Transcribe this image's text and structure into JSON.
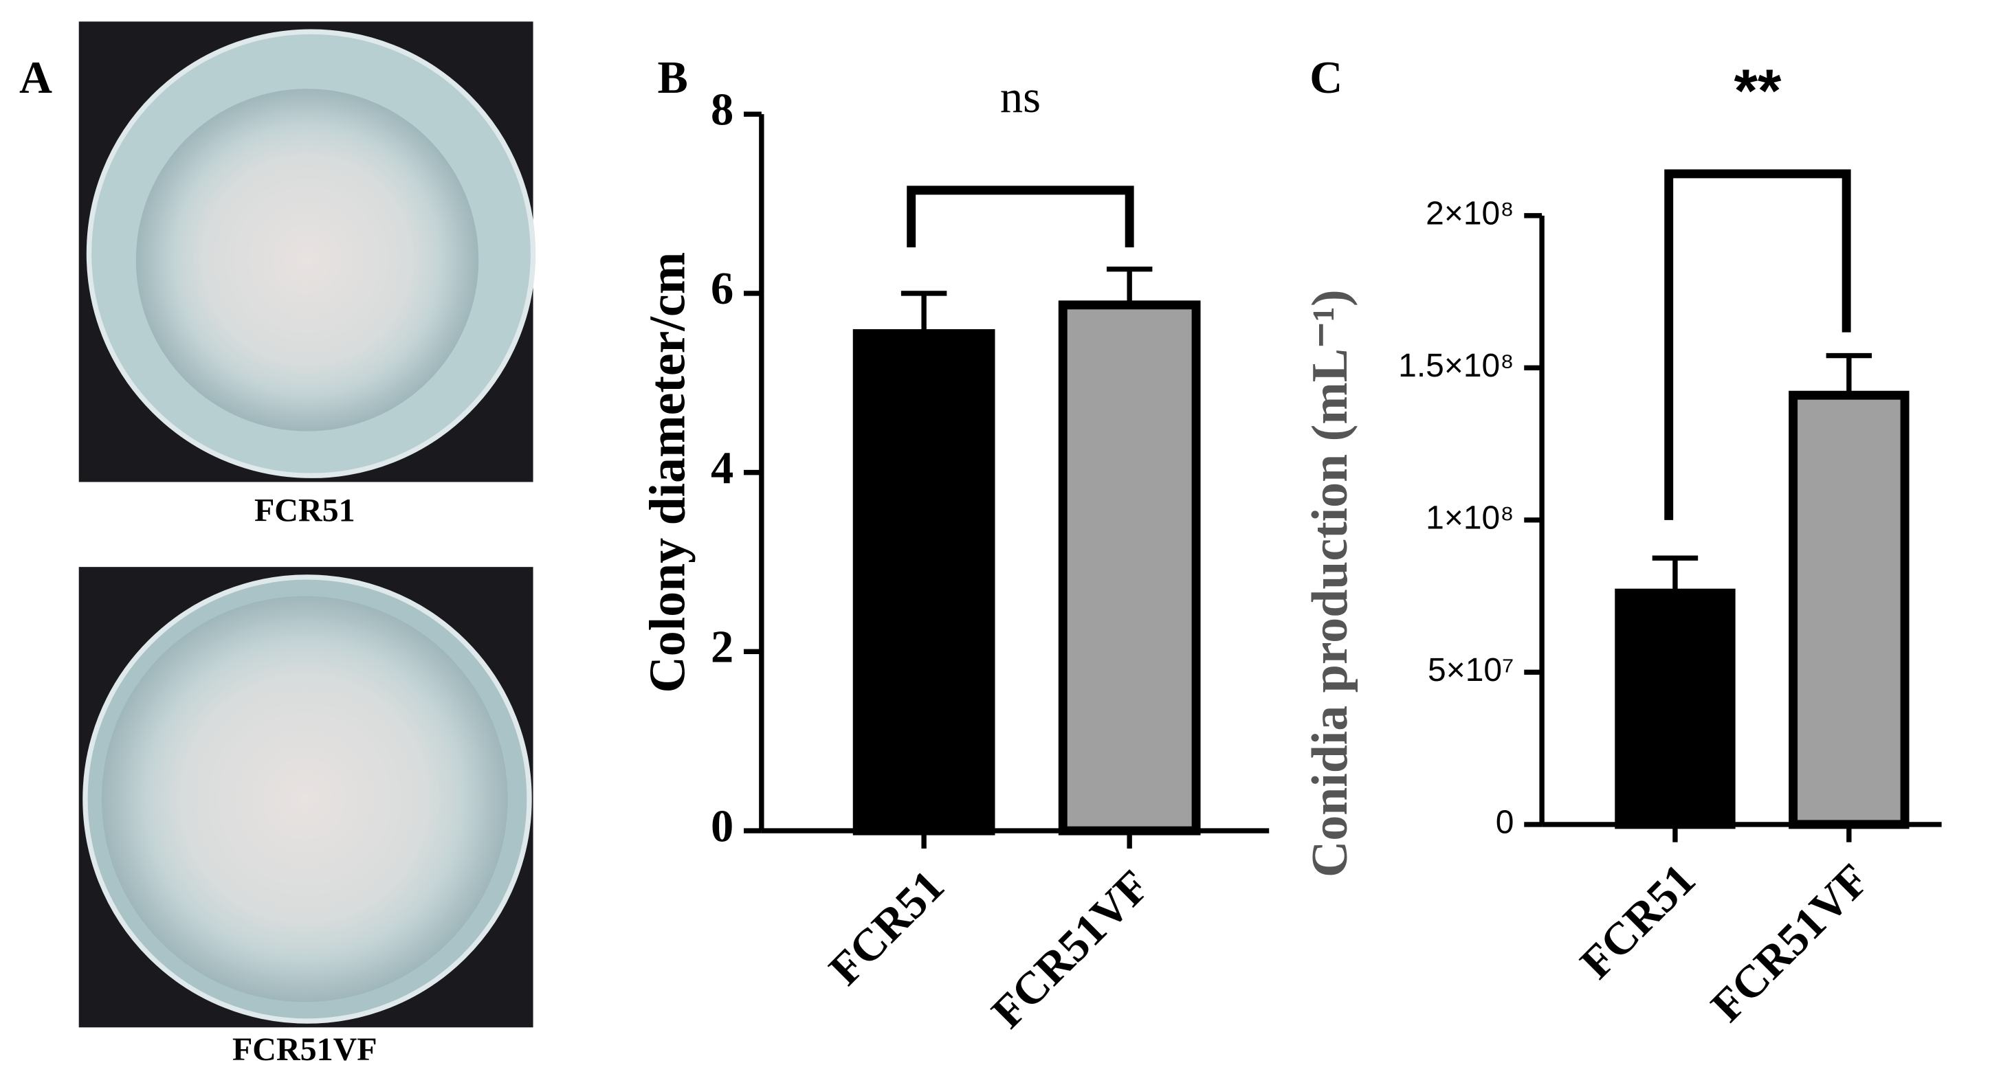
{
  "photo_panel": {
    "panel_label": "A",
    "captions": [
      "FCR51",
      "FCR51VF"
    ]
  },
  "chart_data": [
    {
      "type": "bar",
      "panel_label": "B",
      "ylabel": "Colony diameter/cm",
      "annotation": "ns",
      "categories": [
        "FCR51",
        "FCR51VF"
      ],
      "values": [
        5.55,
        5.87
      ],
      "errors": [
        0.45,
        0.4
      ],
      "colors": [
        "#000000",
        "#a0a0a0"
      ],
      "ylim": [
        0,
        8
      ],
      "yticks": [
        0,
        2,
        4,
        6,
        8
      ]
    },
    {
      "type": "bar",
      "panel_label": "C",
      "ylabel": "Conidia production (mL⁻¹)",
      "annotation": "**",
      "categories": [
        "FCR51",
        "FCR51VF"
      ],
      "values": [
        76000000,
        141000000
      ],
      "errors": [
        11500000,
        13000000
      ],
      "colors": [
        "#000000",
        "#a0a0a0"
      ],
      "ylim": [
        0,
        200000000
      ],
      "yticks": [
        0,
        {
          "value": 50000000,
          "label": "5×10⁷"
        },
        {
          "value": 100000000,
          "label": "1×10⁸"
        },
        {
          "value": 150000000,
          "label": "1.5×10⁸"
        },
        {
          "value": 200000000,
          "label": "2×10⁸"
        }
      ]
    }
  ]
}
